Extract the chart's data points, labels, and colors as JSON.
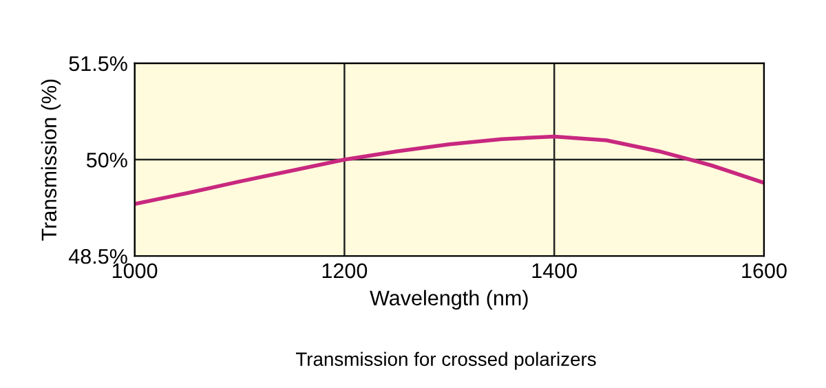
{
  "chart_data": {
    "type": "line",
    "xlabel": "Wavelength (nm)",
    "ylabel": "Transmission (%)",
    "x": [
      1000,
      1050,
      1100,
      1150,
      1200,
      1250,
      1300,
      1350,
      1400,
      1450,
      1500,
      1550,
      1600
    ],
    "series": [
      {
        "color": "#c8287f",
        "values": [
          49.31,
          49.48,
          49.66,
          49.83,
          50.0,
          50.13,
          50.24,
          50.32,
          50.36,
          50.3,
          50.13,
          49.91,
          49.64
        ]
      }
    ],
    "xlim": [
      1000,
      1600
    ],
    "xticks": [
      1000,
      1200,
      1400,
      1600
    ],
    "ylim": [
      48.5,
      51.5
    ],
    "yticks": [
      {
        "value": 48.5,
        "label": "48.5%"
      },
      {
        "value": 50,
        "label": "50%"
      },
      {
        "value": 51.5,
        "label": "51.5%"
      }
    ],
    "grid": true,
    "marker": "none",
    "line_style": "solid",
    "annotations": [
      "Transmission for crossed polarizers"
    ]
  }
}
